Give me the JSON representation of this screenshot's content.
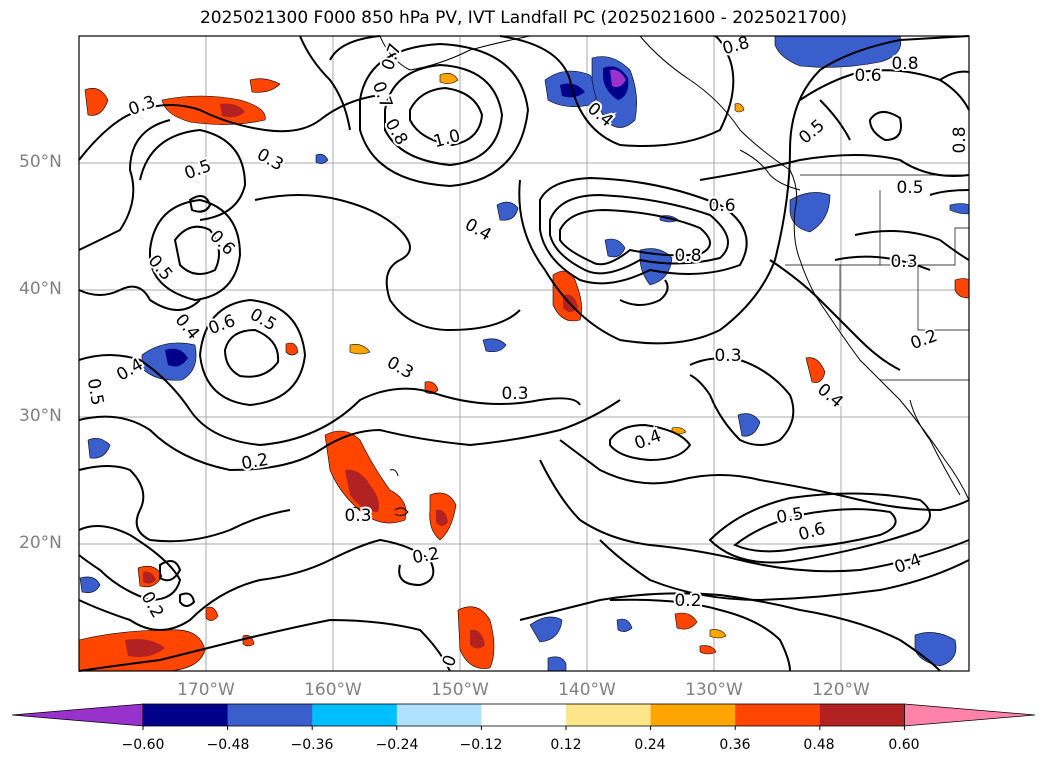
{
  "title": "2025021300 F000 850 hPa PV, IVT Landfall PC (2025021600 - 2025021700)",
  "lat_labels": [
    "50°N",
    "40°N",
    "30°N",
    "20°N"
  ],
  "lon_labels": [
    "170°W",
    "160°W",
    "150°W",
    "140°W",
    "130°W",
    "120°W"
  ],
  "colorbar": {
    "ticks": [
      "−0.60",
      "−0.48",
      "−0.36",
      "−0.24",
      "−0.12",
      "0.12",
      "0.24",
      "0.36",
      "0.48",
      "0.60"
    ],
    "colors": [
      "#9932cc",
      "#00008b",
      "#3a5fcd",
      "#00bfff",
      "#b0e2ff",
      "#ffffff",
      "#fde68a",
      "#ffa500",
      "#ff4500",
      "#b22222",
      "#ff82ab"
    ]
  },
  "contour_labels": [
    {
      "text": "0.3",
      "kind": "pv"
    },
    {
      "text": "0.5",
      "kind": "pv"
    },
    {
      "text": "0.3",
      "kind": "pv"
    },
    {
      "text": "0.6",
      "kind": "pv"
    },
    {
      "text": "0.5",
      "kind": "pv"
    },
    {
      "text": "0.4",
      "kind": "pv"
    },
    {
      "text": "0.6",
      "kind": "pv"
    },
    {
      "text": "0.5",
      "kind": "pv"
    },
    {
      "text": "0.4",
      "kind": "pv"
    },
    {
      "text": "0.5",
      "kind": "pv"
    },
    {
      "text": "0.7",
      "kind": "pv"
    },
    {
      "text": "0.8",
      "kind": "pv"
    },
    {
      "text": "1.0",
      "kind": "pv"
    },
    {
      "text": "0.4",
      "kind": "pv"
    },
    {
      "text": "0.4",
      "kind": "pv"
    },
    {
      "text": "0.8",
      "kind": "pv"
    },
    {
      "text": "0.6",
      "kind": "pv"
    },
    {
      "text": "0.8",
      "kind": "pv"
    },
    {
      "text": "0.5",
      "kind": "pv"
    },
    {
      "text": "0.8",
      "kind": "pv"
    },
    {
      "text": "0.6",
      "kind": "pv"
    },
    {
      "text": "0.8",
      "kind": "pv"
    },
    {
      "text": "0.7",
      "kind": "pv"
    },
    {
      "text": "0.5",
      "kind": "pv"
    },
    {
      "text": "0.3",
      "kind": "pv"
    },
    {
      "text": "0.2",
      "kind": "pv"
    },
    {
      "text": "0.3",
      "kind": "pv"
    },
    {
      "text": "0.3",
      "kind": "pv"
    },
    {
      "text": "0.3",
      "kind": "pv"
    },
    {
      "text": "0.4",
      "kind": "pv"
    },
    {
      "text": "0.4",
      "kind": "pv"
    },
    {
      "text": "0.2",
      "kind": "pv"
    },
    {
      "text": "0.3",
      "kind": "pv"
    },
    {
      "text": "0.2",
      "kind": "pv"
    },
    {
      "text": "0.5",
      "kind": "pv"
    },
    {
      "text": "0.6",
      "kind": "pv"
    },
    {
      "text": "0.4",
      "kind": "pv"
    },
    {
      "text": "0.2",
      "kind": "pv"
    },
    {
      "text": "0.2",
      "kind": "pv"
    },
    {
      "text": "0",
      "kind": "pv"
    }
  ]
}
